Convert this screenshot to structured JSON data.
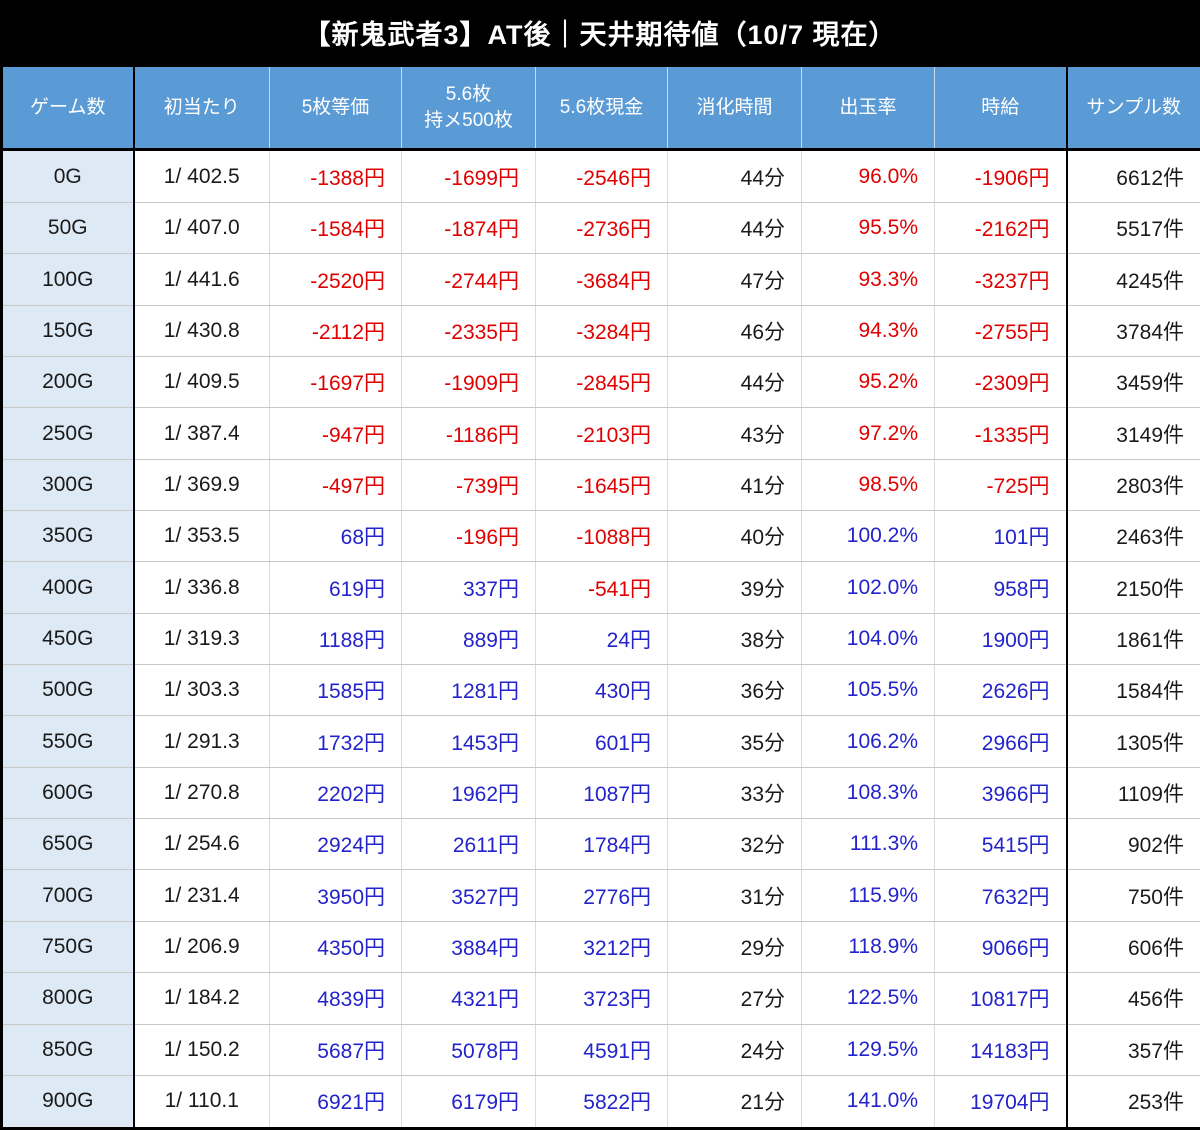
{
  "title": "【新鬼武者3】AT後｜天井期待値（10/7 現在）",
  "chart_data": {
    "type": "table",
    "title": "【新鬼武者3】AT後｜天井期待値（10/7 現在）",
    "columns": [
      "ゲーム数",
      "初当たり",
      "5枚等価",
      "5.6枚\n持メ500枚",
      "5.6枚現金",
      "消化時間",
      "出玉率",
      "時給",
      "サンプル数"
    ],
    "rows": [
      [
        "0G",
        "1/ 402.5",
        "-1388円",
        "-1699円",
        "-2546円",
        "44分",
        "96.0%",
        "-1906円",
        "6612件"
      ],
      [
        "50G",
        "1/ 407.0",
        "-1584円",
        "-1874円",
        "-2736円",
        "44分",
        "95.5%",
        "-2162円",
        "5517件"
      ],
      [
        "100G",
        "1/ 441.6",
        "-2520円",
        "-2744円",
        "-3684円",
        "47分",
        "93.3%",
        "-3237円",
        "4245件"
      ],
      [
        "150G",
        "1/ 430.8",
        "-2112円",
        "-2335円",
        "-3284円",
        "46分",
        "94.3%",
        "-2755円",
        "3784件"
      ],
      [
        "200G",
        "1/ 409.5",
        "-1697円",
        "-1909円",
        "-2845円",
        "44分",
        "95.2%",
        "-2309円",
        "3459件"
      ],
      [
        "250G",
        "1/ 387.4",
        "-947円",
        "-1186円",
        "-2103円",
        "43分",
        "97.2%",
        "-1335円",
        "3149件"
      ],
      [
        "300G",
        "1/ 369.9",
        "-497円",
        "-739円",
        "-1645円",
        "41分",
        "98.5%",
        "-725円",
        "2803件"
      ],
      [
        "350G",
        "1/ 353.5",
        "68円",
        "-196円",
        "-1088円",
        "40分",
        "100.2%",
        "101円",
        "2463件"
      ],
      [
        "400G",
        "1/ 336.8",
        "619円",
        "337円",
        "-541円",
        "39分",
        "102.0%",
        "958円",
        "2150件"
      ],
      [
        "450G",
        "1/ 319.3",
        "1188円",
        "889円",
        "24円",
        "38分",
        "104.0%",
        "1900円",
        "1861件"
      ],
      [
        "500G",
        "1/ 303.3",
        "1585円",
        "1281円",
        "430円",
        "36分",
        "105.5%",
        "2626円",
        "1584件"
      ],
      [
        "550G",
        "1/ 291.3",
        "1732円",
        "1453円",
        "601円",
        "35分",
        "106.2%",
        "2966円",
        "1305件"
      ],
      [
        "600G",
        "1/ 270.8",
        "2202円",
        "1962円",
        "1087円",
        "33分",
        "108.3%",
        "3966円",
        "1109件"
      ],
      [
        "650G",
        "1/ 254.6",
        "2924円",
        "2611円",
        "1784円",
        "32分",
        "111.3%",
        "5415円",
        "902件"
      ],
      [
        "700G",
        "1/ 231.4",
        "3950円",
        "3527円",
        "2776円",
        "31分",
        "115.9%",
        "7632円",
        "750件"
      ],
      [
        "750G",
        "1/ 206.9",
        "4350円",
        "3884円",
        "3212円",
        "29分",
        "118.9%",
        "9066円",
        "606件"
      ],
      [
        "800G",
        "1/ 184.2",
        "4839円",
        "4321円",
        "3723円",
        "27分",
        "122.5%",
        "10817円",
        "456件"
      ],
      [
        "850G",
        "1/ 150.2",
        "5687円",
        "5078円",
        "4591円",
        "24分",
        "129.5%",
        "14183円",
        "357件"
      ],
      [
        "900G",
        "1/ 110.1",
        "6921円",
        "6179円",
        "5822円",
        "21分",
        "141.0%",
        "19704円",
        "253件"
      ]
    ]
  },
  "colors": {
    "title_bg": "#000000",
    "title_text": "#ffffff",
    "header_bg": "#5b9bd5",
    "header_text": "#ffffff",
    "row_label_bg": "#dde9f5",
    "negative_text": "#e00000",
    "positive_text": "#2323cc",
    "neutral_text": "#1a1a1a"
  }
}
